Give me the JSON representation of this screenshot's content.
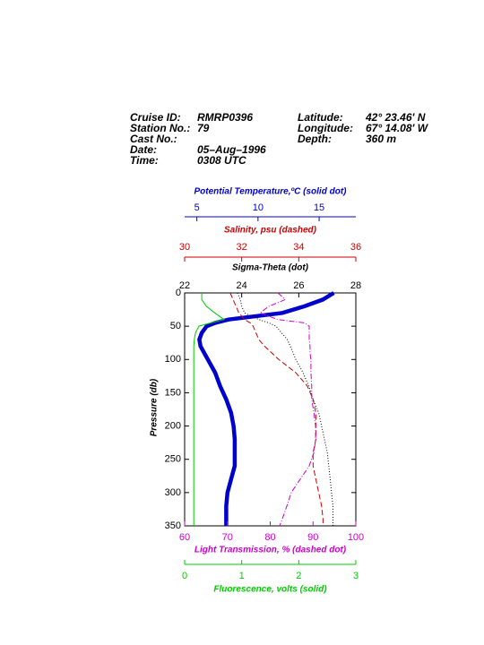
{
  "header": {
    "left": [
      {
        "label": "Cruise ID:",
        "value": "RMRP0396"
      },
      {
        "label": "Station No.:",
        "value": "79"
      },
      {
        "label": "Cast No.:"
      },
      {
        "label": "Date:",
        "value": "05–Aug–1996"
      },
      {
        "label": "Time:",
        "value": "0308 UTC"
      }
    ],
    "right": [
      {
        "label": "Latitude:",
        "value": "42° 23.46' N"
      },
      {
        "label": "Longitude:",
        "value": "67° 14.08' W"
      },
      {
        "label": "Depth:",
        "value": "360 m"
      }
    ]
  },
  "chart_data": {
    "type": "line",
    "ylabel": "Pressure (db)",
    "ylim": [
      0,
      350
    ],
    "y_inverted": true,
    "yticks": [
      0,
      50,
      100,
      150,
      200,
      250,
      300,
      350
    ],
    "y": [
      0,
      10,
      20,
      30,
      40,
      45,
      50,
      60,
      70,
      80,
      90,
      100,
      120,
      140,
      160,
      180,
      200,
      220,
      240,
      260,
      280,
      300,
      320,
      340,
      350
    ],
    "series": [
      {
        "name": "Potential Temperature,ºC (solid dot)",
        "color": "#0000cc",
        "linestyle": "thick",
        "xlim": [
          4,
          18
        ],
        "xticks": [
          5,
          10,
          15
        ],
        "values": [
          16.2,
          15.3,
          13.8,
          12.0,
          7.6,
          6.5,
          5.8,
          5.4,
          5.2,
          5.3,
          5.6,
          5.9,
          6.5,
          6.9,
          7.4,
          7.8,
          8.0,
          8.1,
          8.1,
          8.1,
          7.8,
          7.5,
          7.4,
          7.4,
          7.4
        ]
      },
      {
        "name": "Salinity, psu  (dashed)",
        "color": "#cc0000",
        "linestyle": "dashed",
        "xlim": [
          30,
          36
        ],
        "xticks": [
          30,
          32,
          34,
          36
        ],
        "values": [
          31.6,
          31.7,
          31.8,
          31.9,
          32.1,
          32.3,
          32.4,
          32.5,
          32.6,
          32.8,
          33.05,
          33.3,
          33.9,
          34.3,
          34.5,
          34.6,
          34.6,
          34.6,
          34.5,
          34.5,
          34.6,
          34.7,
          34.8,
          34.85,
          34.85
        ]
      },
      {
        "name": "Sigma-Theta (dot)",
        "color": "#000000",
        "linestyle": "dotted",
        "xlim": [
          22,
          28
        ],
        "xticks": [
          22,
          24,
          26,
          28
        ],
        "values": [
          23.85,
          23.95,
          24.0,
          24.1,
          24.6,
          24.95,
          25.2,
          25.4,
          25.6,
          25.7,
          25.8,
          25.9,
          26.15,
          26.35,
          26.5,
          26.7,
          26.8,
          26.9,
          27.0,
          27.05,
          27.1,
          27.15,
          27.2,
          27.2,
          27.2
        ]
      },
      {
        "name": "Light Transmission, % (dashed dot)",
        "color": "#cc00cc",
        "linestyle": "dashdot",
        "xlim": [
          60,
          100
        ],
        "xticks": [
          60,
          70,
          80,
          90,
          100
        ],
        "values": [
          81.8,
          83.5,
          79.7,
          77.6,
          81.8,
          88.0,
          89.1,
          89.1,
          89.1,
          89.3,
          89.3,
          89.5,
          89.5,
          89.7,
          89.7,
          90.2,
          90.6,
          90.6,
          90.2,
          89.1,
          87.0,
          84.9,
          83.9,
          82.8,
          82.2
        ]
      },
      {
        "name": "Fluorescence, volts (solid)",
        "color": "#00cc00",
        "linestyle": "solid",
        "xlim": [
          0,
          3
        ],
        "xticks": [
          0,
          1,
          2,
          3
        ],
        "values": [
          0.3,
          0.3,
          0.38,
          0.53,
          0.69,
          0.46,
          0.25,
          0.19,
          0.17,
          0.16,
          0.16,
          0.16,
          0.16,
          0.16,
          0.16,
          0.16,
          0.16,
          0.16,
          0.16,
          0.16,
          0.16,
          0.16,
          0.16,
          0.16,
          0.16
        ]
      }
    ]
  }
}
